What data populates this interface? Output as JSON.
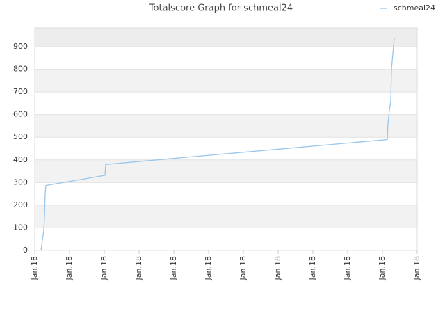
{
  "chart_data": {
    "type": "line",
    "title": "Totalscore Graph for schmeal24",
    "series": [
      {
        "name": "schmeal24",
        "color": "#99c6ea",
        "x": [
          0.18,
          0.26,
          0.28,
          0.3,
          0.32,
          2.02,
          2.04,
          10.14,
          10.16,
          10.2,
          10.24,
          10.26,
          10.34
        ],
        "values": [
          0,
          90,
          150,
          250,
          287,
          332,
          380,
          490,
          560,
          620,
          660,
          800,
          937
        ]
      }
    ],
    "xlim": [
      0,
      11
    ],
    "xticks": [
      {
        "value": 0,
        "label": "Jan.18"
      },
      {
        "value": 1,
        "label": "Jan.18"
      },
      {
        "value": 2,
        "label": "Jan.18"
      },
      {
        "value": 3,
        "label": "Jan.18"
      },
      {
        "value": 4,
        "label": "Jan.18"
      },
      {
        "value": 5,
        "label": "Jan.18"
      },
      {
        "value": 6,
        "label": "Jan.18"
      },
      {
        "value": 7,
        "label": "Jan.18"
      },
      {
        "value": 8,
        "label": "Jan.18"
      },
      {
        "value": 9,
        "label": "Jan.18"
      },
      {
        "value": 10,
        "label": "Jan.18"
      },
      {
        "value": 11,
        "label": "Jan.18"
      }
    ],
    "ylim": [
      0,
      983
    ],
    "yticks": [
      0,
      100,
      200,
      300,
      400,
      500,
      600,
      700,
      800,
      900
    ],
    "grid": true,
    "legend": "top-right"
  }
}
